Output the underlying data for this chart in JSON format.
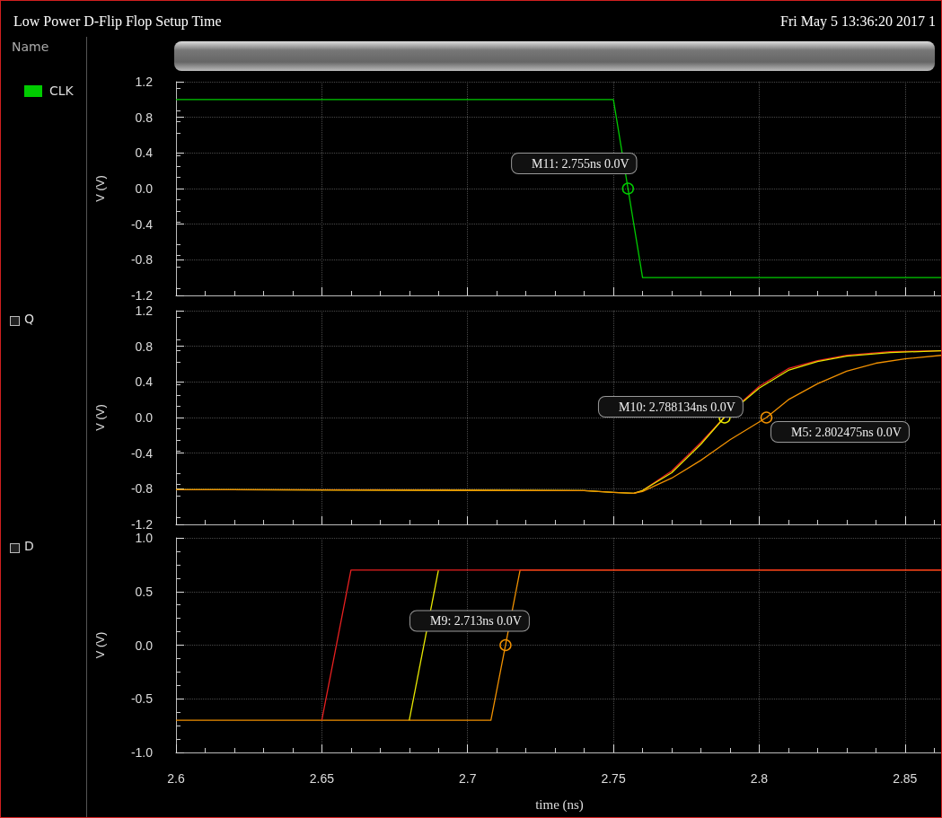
{
  "chart_data": [
    {
      "type": "line",
      "title": "Low Power D-Flip Flop Setup Time",
      "subtitle": "Fri May 5 13:36:20 2017  1",
      "legend_title": "Name",
      "ylabel": "V (V)",
      "legend": "left",
      "grid": true,
      "tick_labels": "y",
      "xlim": [
        2.6,
        2.863
      ],
      "xticks": [
        2.6,
        2.65,
        2.7,
        2.75,
        2.8,
        2.85
      ],
      "ylim": [
        -1.2,
        1.2
      ],
      "yticks": [
        1.2,
        0.8,
        0.4,
        {
          "value": 0,
          "label": "0.0"
        },
        -0.4,
        -0.8,
        -1.2
      ],
      "series": [
        {
          "name": "CLK",
          "color": "#00cc00",
          "x": [
            2.6,
            2.75,
            2.76,
            2.863
          ],
          "values": [
            1.0,
            1.0,
            -1.0,
            -1.0
          ]
        }
      ],
      "annotations": [
        {
          "text": "M11: 2.755ns 0.0V",
          "x": 2.755,
          "y": 0
        }
      ]
    },
    {
      "type": "line",
      "legend_title": "Q",
      "ylabel": "V (V)",
      "grid": true,
      "tick_labels": "y",
      "xlim": [
        2.6,
        2.863
      ],
      "xticks": [
        2.6,
        2.65,
        2.7,
        2.75,
        2.8,
        2.85
      ],
      "ylim": [
        -1.2,
        1.2
      ],
      "yticks": [
        1.2,
        0.8,
        0.4,
        {
          "value": 0,
          "label": "0.0"
        },
        -0.4,
        -0.8,
        -1.2
      ],
      "series": [
        {
          "color": "#e82020",
          "x": [
            2.757,
            2.76,
            2.77,
            2.78,
            2.788,
            2.8,
            2.81,
            2.82,
            2.83,
            2.845,
            2.863
          ],
          "values": [
            -0.85,
            -0.82,
            -0.6,
            -0.28,
            0,
            0.35,
            0.55,
            0.64,
            0.7,
            0.74,
            0.75
          ]
        },
        {
          "color": "#e8e800",
          "x": [
            2.6,
            2.74,
            2.75,
            2.757,
            2.76,
            2.77,
            2.78,
            2.788,
            2.8,
            2.81,
            2.82,
            2.83,
            2.845,
            2.863
          ],
          "values": [
            -0.81,
            -0.82,
            -0.84,
            -0.85,
            -0.82,
            -0.62,
            -0.3,
            0,
            0.33,
            0.53,
            0.63,
            0.69,
            0.73,
            0.75
          ]
        },
        {
          "color": "#f09000",
          "x": [
            2.6,
            2.74,
            2.75,
            2.757,
            2.76,
            2.77,
            2.78,
            2.79,
            2.8025,
            2.81,
            2.82,
            2.83,
            2.84,
            2.85,
            2.863
          ],
          "values": [
            -0.81,
            -0.82,
            -0.84,
            -0.85,
            -0.83,
            -0.68,
            -0.48,
            -0.25,
            0,
            0.2,
            0.38,
            0.52,
            0.61,
            0.66,
            0.7
          ]
        }
      ],
      "annotations": [
        {
          "text": "M10: 2.788134ns 0.0V",
          "x": 2.788134,
          "y": 0
        },
        {
          "text": "M5: 2.802475ns 0.0V",
          "x": 2.802475,
          "y": 0
        }
      ]
    },
    {
      "type": "line",
      "legend_title": "D",
      "ylabel": "V (V)",
      "xlabel": "time (ns)",
      "grid": true,
      "xlim": [
        2.6,
        2.863
      ],
      "xticks": [
        2.6,
        2.65,
        2.7,
        2.75,
        2.8,
        2.85
      ],
      "ylim": [
        -1.0,
        1.0
      ],
      "yticks": [
        {
          "value": 1,
          "label": "1.0"
        },
        0.5,
        {
          "value": 0,
          "label": "0.0"
        },
        -0.5,
        {
          "value": -1,
          "label": "-1.0"
        }
      ],
      "series": [
        {
          "color": "#f09000",
          "x": [
            2.6,
            2.708,
            2.718,
            2.863
          ],
          "values": [
            -0.7,
            -0.7,
            0.7,
            0.7
          ]
        },
        {
          "color": "#e8e800",
          "x": [
            2.68,
            2.69
          ],
          "values": [
            -0.7,
            0.7
          ]
        },
        {
          "color": "#e82020",
          "x": [
            2.65,
            2.66,
            2.863
          ],
          "values": [
            -0.7,
            0.7,
            0.7
          ]
        }
      ],
      "annotations": [
        {
          "text": "M9: 2.713ns 0.0V",
          "x": 2.713,
          "y": 0
        }
      ]
    }
  ]
}
